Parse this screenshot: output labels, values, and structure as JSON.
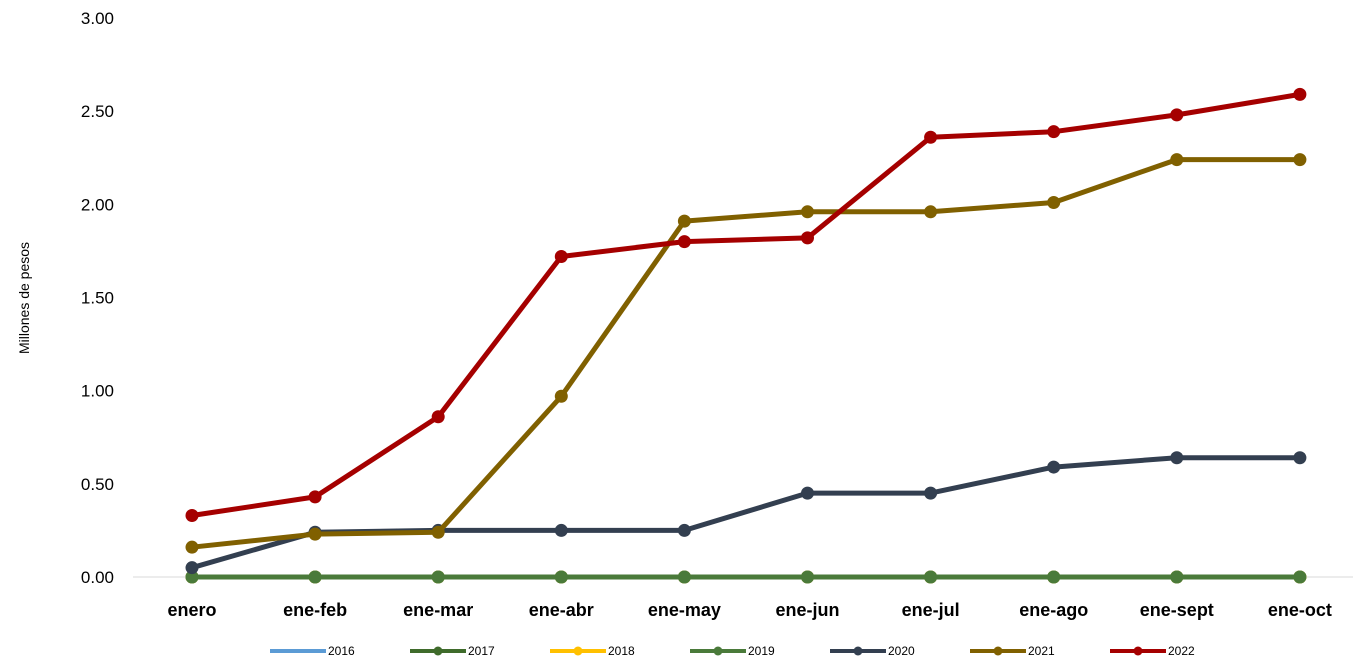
{
  "chart_data": {
    "type": "line",
    "title": "",
    "xlabel": "",
    "ylabel": "Millones de pesos",
    "ylim": [
      0,
      3
    ],
    "y_ticks": [
      "0.00",
      "0.50",
      "1.00",
      "1.50",
      "2.00",
      "2.50",
      "3.00"
    ],
    "categories": [
      "enero",
      "ene-feb",
      "ene-mar",
      "ene-abr",
      "ene-may",
      "ene-jun",
      "ene-jul",
      "ene-ago",
      "ene-sept",
      "ene-oct"
    ],
    "grid": false,
    "legend_position": "bottom",
    "series": [
      {
        "name": "2016",
        "color": "#5b9bd5",
        "values": [
          0,
          0,
          0,
          0,
          0,
          0,
          0,
          0,
          0,
          0
        ]
      },
      {
        "name": "2017",
        "color": "#3f6b2b",
        "values": [
          0,
          0,
          0,
          0,
          0,
          0,
          0,
          0,
          0,
          0
        ]
      },
      {
        "name": "2018",
        "color": "#ffc000",
        "values": [
          0,
          0,
          0,
          0,
          0,
          0,
          0,
          0,
          0,
          0
        ]
      },
      {
        "name": "2019",
        "color": "#4a7a3a",
        "values": [
          0,
          0,
          0,
          0,
          0,
          0,
          0,
          0,
          0,
          0
        ]
      },
      {
        "name": "2020",
        "color": "#333f50",
        "values": [
          0.05,
          0.24,
          0.25,
          0.25,
          0.25,
          0.45,
          0.45,
          0.59,
          0.64,
          0.64
        ]
      },
      {
        "name": "2021",
        "color": "#806000",
        "values": [
          0.16,
          0.23,
          0.24,
          0.97,
          1.91,
          1.96,
          1.96,
          2.01,
          2.24,
          2.24
        ]
      },
      {
        "name": "2022",
        "color": "#a50000",
        "values": [
          0.33,
          0.43,
          0.86,
          1.72,
          1.8,
          1.82,
          2.36,
          2.39,
          2.48,
          2.59
        ]
      }
    ]
  }
}
